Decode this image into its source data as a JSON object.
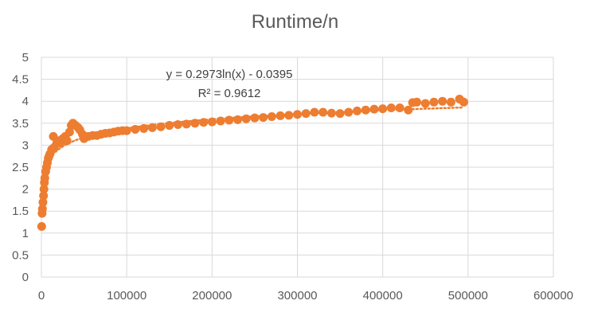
{
  "chart_data": {
    "type": "scatter",
    "title": "Runtime/n",
    "xlabel": "",
    "ylabel": "",
    "xlim": [
      0,
      600000
    ],
    "ylim": [
      0,
      5
    ],
    "x_ticks": [
      "0",
      "100000",
      "200000",
      "300000",
      "400000",
      "500000",
      "600000"
    ],
    "y_ticks": [
      "0",
      "0.5",
      "1",
      "1.5",
      "2",
      "2.5",
      "3",
      "3.5",
      "4",
      "4.5",
      "5"
    ],
    "grid": true,
    "legend": "none",
    "series": [
      {
        "color": "#ED7D31",
        "points": [
          [
            300,
            1.15
          ],
          [
            800,
            1.45
          ],
          [
            1200,
            1.55
          ],
          [
            1800,
            1.7
          ],
          [
            2500,
            1.85
          ],
          [
            3000,
            2.0
          ],
          [
            3500,
            2.15
          ],
          [
            4000,
            2.25
          ],
          [
            5000,
            2.4
          ],
          [
            6000,
            2.5
          ],
          [
            7000,
            2.6
          ],
          [
            8000,
            2.7
          ],
          [
            9000,
            2.75
          ],
          [
            10000,
            2.8
          ],
          [
            12000,
            2.9
          ],
          [
            14000,
            3.2
          ],
          [
            15000,
            2.95
          ],
          [
            18000,
            3.05
          ],
          [
            20000,
            3.1
          ],
          [
            22000,
            3.05
          ],
          [
            25000,
            3.15
          ],
          [
            28000,
            3.2
          ],
          [
            30000,
            3.1
          ],
          [
            33000,
            3.3
          ],
          [
            35000,
            3.45
          ],
          [
            37000,
            3.5
          ],
          [
            40000,
            3.45
          ],
          [
            43000,
            3.4
          ],
          [
            45000,
            3.35
          ],
          [
            48000,
            3.25
          ],
          [
            50000,
            3.15
          ],
          [
            55000,
            3.2
          ],
          [
            60000,
            3.22
          ],
          [
            65000,
            3.22
          ],
          [
            70000,
            3.25
          ],
          [
            75000,
            3.27
          ],
          [
            80000,
            3.28
          ],
          [
            85000,
            3.3
          ],
          [
            90000,
            3.32
          ],
          [
            95000,
            3.33
          ],
          [
            100000,
            3.33
          ],
          [
            110000,
            3.36
          ],
          [
            120000,
            3.38
          ],
          [
            130000,
            3.4
          ],
          [
            140000,
            3.42
          ],
          [
            150000,
            3.45
          ],
          [
            160000,
            3.47
          ],
          [
            170000,
            3.48
          ],
          [
            180000,
            3.5
          ],
          [
            190000,
            3.52
          ],
          [
            200000,
            3.53
          ],
          [
            210000,
            3.55
          ],
          [
            220000,
            3.57
          ],
          [
            230000,
            3.58
          ],
          [
            240000,
            3.6
          ],
          [
            250000,
            3.62
          ],
          [
            260000,
            3.63
          ],
          [
            270000,
            3.65
          ],
          [
            280000,
            3.67
          ],
          [
            290000,
            3.68
          ],
          [
            300000,
            3.7
          ],
          [
            310000,
            3.72
          ],
          [
            320000,
            3.75
          ],
          [
            330000,
            3.75
          ],
          [
            340000,
            3.73
          ],
          [
            350000,
            3.72
          ],
          [
            360000,
            3.75
          ],
          [
            370000,
            3.78
          ],
          [
            380000,
            3.8
          ],
          [
            390000,
            3.82
          ],
          [
            400000,
            3.83
          ],
          [
            410000,
            3.85
          ],
          [
            420000,
            3.85
          ],
          [
            430000,
            3.8
          ],
          [
            435000,
            3.97
          ],
          [
            440000,
            3.98
          ],
          [
            450000,
            3.95
          ],
          [
            460000,
            3.98
          ],
          [
            470000,
            4.0
          ],
          [
            480000,
            3.98
          ],
          [
            490000,
            4.05
          ],
          [
            495000,
            3.98
          ]
        ]
      }
    ],
    "trendline": {
      "type": "logarithmic",
      "color": "#ED7D31",
      "style": "dotted",
      "equation": "y = 0.2973ln(x) - 0.0395",
      "r_squared": "R² = 0.9612"
    }
  }
}
